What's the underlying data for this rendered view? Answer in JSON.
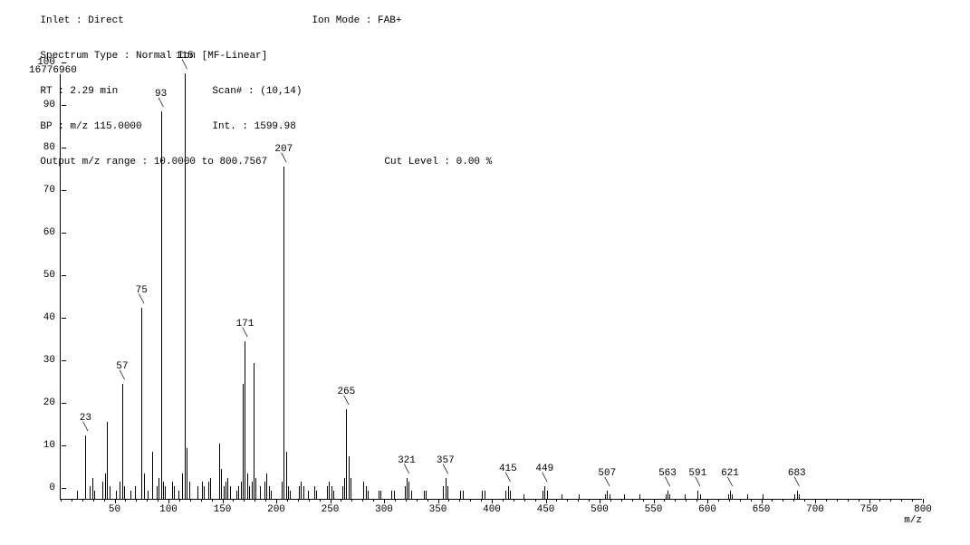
{
  "header": {
    "line1": {
      "inlet_label": "Inlet : ",
      "inlet_value": "Direct",
      "ionmode_label": "Ion Mode : ",
      "ionmode_value": "FAB+"
    },
    "line2": {
      "spectrum_label": "Spectrum Type : ",
      "spectrum_value": "Normal Ion [MF-Linear]"
    },
    "line3": {
      "rt_label": "RT : ",
      "rt_value": "2.29 min",
      "scan_label": "Scan# : ",
      "scan_value": "(10,14)"
    },
    "line4": {
      "bp_label": "BP : ",
      "bp_value": "m/z 115.0000",
      "int_label": "Int. : ",
      "int_value": "1599.98"
    },
    "line5": {
      "range_label": "Output m/z range : ",
      "range_value": "10.0000 to 800.7567",
      "cut_label": "Cut Level : ",
      "cut_value": "0.00 %"
    }
  },
  "chart": {
    "type": "mass-spectrum-bar",
    "total_intensity": "16776960",
    "x_axis_title": "m/z",
    "xlim": [
      0,
      800
    ],
    "x_ticks": [
      50,
      100,
      150,
      200,
      250,
      300,
      350,
      400,
      450,
      500,
      550,
      600,
      650,
      700,
      750,
      800
    ],
    "x_minor_step": 10,
    "ylim": [
      0,
      100
    ],
    "y_ticks": [
      0,
      10,
      20,
      30,
      40,
      50,
      60,
      70,
      80,
      90,
      100
    ],
    "background_color": "#ffffff",
    "axis_color": "#000000",
    "peak_color": "#000000",
    "label_fontsize": 11,
    "labeled_peaks": [
      {
        "mz": 23,
        "intensity": 15,
        "label": "23"
      },
      {
        "mz": 57,
        "intensity": 27,
        "label": "57"
      },
      {
        "mz": 75,
        "intensity": 45,
        "label": "75"
      },
      {
        "mz": 93,
        "intensity": 91,
        "label": "93"
      },
      {
        "mz": 115,
        "intensity": 100,
        "label": "115"
      },
      {
        "mz": 171,
        "intensity": 37,
        "label": "171"
      },
      {
        "mz": 207,
        "intensity": 78,
        "label": "207"
      },
      {
        "mz": 265,
        "intensity": 21,
        "label": "265"
      },
      {
        "mz": 321,
        "intensity": 5,
        "label": "321"
      },
      {
        "mz": 357,
        "intensity": 5,
        "label": "357"
      },
      {
        "mz": 415,
        "intensity": 3,
        "label": "415"
      },
      {
        "mz": 449,
        "intensity": 3,
        "label": "449"
      },
      {
        "mz": 507,
        "intensity": 2,
        "label": "507"
      },
      {
        "mz": 563,
        "intensity": 2,
        "label": "563"
      },
      {
        "mz": 591,
        "intensity": 2,
        "label": "591"
      },
      {
        "mz": 621,
        "intensity": 2,
        "label": "621"
      },
      {
        "mz": 683,
        "intensity": 2,
        "label": "683"
      }
    ],
    "minor_peaks": [
      {
        "mz": 15,
        "intensity": 2
      },
      {
        "mz": 27,
        "intensity": 3
      },
      {
        "mz": 29,
        "intensity": 5
      },
      {
        "mz": 31,
        "intensity": 2
      },
      {
        "mz": 39,
        "intensity": 4
      },
      {
        "mz": 41,
        "intensity": 6
      },
      {
        "mz": 43,
        "intensity": 18
      },
      {
        "mz": 45,
        "intensity": 3
      },
      {
        "mz": 51,
        "intensity": 2
      },
      {
        "mz": 55,
        "intensity": 4
      },
      {
        "mz": 59,
        "intensity": 3
      },
      {
        "mz": 65,
        "intensity": 2
      },
      {
        "mz": 69,
        "intensity": 3
      },
      {
        "mz": 77,
        "intensity": 6
      },
      {
        "mz": 81,
        "intensity": 2
      },
      {
        "mz": 85,
        "intensity": 11
      },
      {
        "mz": 89,
        "intensity": 3
      },
      {
        "mz": 91,
        "intensity": 5
      },
      {
        "mz": 95,
        "intensity": 4
      },
      {
        "mz": 97,
        "intensity": 3
      },
      {
        "mz": 103,
        "intensity": 4
      },
      {
        "mz": 105,
        "intensity": 3
      },
      {
        "mz": 109,
        "intensity": 2
      },
      {
        "mz": 113,
        "intensity": 6
      },
      {
        "mz": 117,
        "intensity": 12
      },
      {
        "mz": 119,
        "intensity": 4
      },
      {
        "mz": 127,
        "intensity": 3
      },
      {
        "mz": 131,
        "intensity": 4
      },
      {
        "mz": 133,
        "intensity": 3
      },
      {
        "mz": 137,
        "intensity": 4
      },
      {
        "mz": 139,
        "intensity": 5
      },
      {
        "mz": 147,
        "intensity": 13
      },
      {
        "mz": 149,
        "intensity": 7
      },
      {
        "mz": 151,
        "intensity": 3
      },
      {
        "mz": 153,
        "intensity": 4
      },
      {
        "mz": 155,
        "intensity": 5
      },
      {
        "mz": 157,
        "intensity": 3
      },
      {
        "mz": 163,
        "intensity": 2
      },
      {
        "mz": 165,
        "intensity": 3
      },
      {
        "mz": 167,
        "intensity": 4
      },
      {
        "mz": 169,
        "intensity": 27
      },
      {
        "mz": 173,
        "intensity": 6
      },
      {
        "mz": 175,
        "intensity": 3
      },
      {
        "mz": 177,
        "intensity": 4
      },
      {
        "mz": 179,
        "intensity": 32
      },
      {
        "mz": 181,
        "intensity": 5
      },
      {
        "mz": 185,
        "intensity": 3
      },
      {
        "mz": 189,
        "intensity": 4
      },
      {
        "mz": 191,
        "intensity": 6
      },
      {
        "mz": 193,
        "intensity": 3
      },
      {
        "mz": 195,
        "intensity": 2
      },
      {
        "mz": 205,
        "intensity": 4
      },
      {
        "mz": 209,
        "intensity": 11
      },
      {
        "mz": 211,
        "intensity": 3
      },
      {
        "mz": 213,
        "intensity": 2
      },
      {
        "mz": 221,
        "intensity": 3
      },
      {
        "mz": 223,
        "intensity": 4
      },
      {
        "mz": 225,
        "intensity": 3
      },
      {
        "mz": 229,
        "intensity": 2
      },
      {
        "mz": 235,
        "intensity": 3
      },
      {
        "mz": 237,
        "intensity": 2
      },
      {
        "mz": 247,
        "intensity": 3
      },
      {
        "mz": 249,
        "intensity": 4
      },
      {
        "mz": 251,
        "intensity": 3
      },
      {
        "mz": 253,
        "intensity": 2
      },
      {
        "mz": 261,
        "intensity": 3
      },
      {
        "mz": 263,
        "intensity": 5
      },
      {
        "mz": 267,
        "intensity": 10
      },
      {
        "mz": 269,
        "intensity": 5
      },
      {
        "mz": 281,
        "intensity": 4
      },
      {
        "mz": 283,
        "intensity": 3
      },
      {
        "mz": 285,
        "intensity": 2
      },
      {
        "mz": 295,
        "intensity": 2
      },
      {
        "mz": 297,
        "intensity": 2
      },
      {
        "mz": 307,
        "intensity": 2
      },
      {
        "mz": 309,
        "intensity": 2
      },
      {
        "mz": 319,
        "intensity": 3
      },
      {
        "mz": 323,
        "intensity": 4
      },
      {
        "mz": 325,
        "intensity": 2
      },
      {
        "mz": 337,
        "intensity": 2
      },
      {
        "mz": 339,
        "intensity": 2
      },
      {
        "mz": 355,
        "intensity": 3
      },
      {
        "mz": 359,
        "intensity": 3
      },
      {
        "mz": 371,
        "intensity": 2
      },
      {
        "mz": 373,
        "intensity": 2
      },
      {
        "mz": 391,
        "intensity": 2
      },
      {
        "mz": 393,
        "intensity": 2
      },
      {
        "mz": 413,
        "intensity": 2
      },
      {
        "mz": 417,
        "intensity": 2
      },
      {
        "mz": 429,
        "intensity": 1
      },
      {
        "mz": 447,
        "intensity": 2
      },
      {
        "mz": 451,
        "intensity": 2
      },
      {
        "mz": 465,
        "intensity": 1
      },
      {
        "mz": 481,
        "intensity": 1
      },
      {
        "mz": 505,
        "intensity": 1
      },
      {
        "mz": 509,
        "intensity": 1
      },
      {
        "mz": 523,
        "intensity": 1
      },
      {
        "mz": 537,
        "intensity": 1
      },
      {
        "mz": 561,
        "intensity": 1
      },
      {
        "mz": 565,
        "intensity": 1
      },
      {
        "mz": 579,
        "intensity": 1
      },
      {
        "mz": 593,
        "intensity": 1
      },
      {
        "mz": 619,
        "intensity": 1
      },
      {
        "mz": 623,
        "intensity": 1
      },
      {
        "mz": 637,
        "intensity": 1
      },
      {
        "mz": 651,
        "intensity": 1
      },
      {
        "mz": 681,
        "intensity": 1
      },
      {
        "mz": 685,
        "intensity": 1
      }
    ]
  }
}
